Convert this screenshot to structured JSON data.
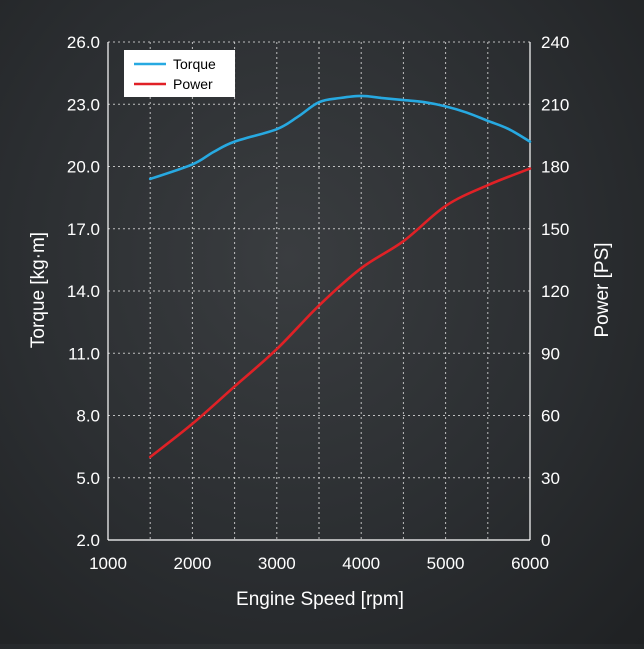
{
  "chart_data": {
    "type": "line",
    "title": "",
    "xlabel": "Engine Speed [rpm]",
    "ylabel_left": "Torque [kg·m]",
    "ylabel_right": "Power [PS]",
    "x_ticks": [
      1000,
      2000,
      3000,
      4000,
      5000,
      6000
    ],
    "x_minor_ticks": [
      1500,
      2500,
      3500,
      4500,
      5500
    ],
    "xlim": [
      1000,
      6000
    ],
    "y_left_ticks": [
      "2.0",
      "5.0",
      "8.0",
      "11.0",
      "14.0",
      "17.0",
      "20.0",
      "23.0",
      "26.0"
    ],
    "ylim_left": [
      2,
      26
    ],
    "y_right_ticks": [
      "0",
      "30",
      "60",
      "90",
      "120",
      "150",
      "180",
      "210",
      "240"
    ],
    "ylim_right": [
      0,
      240
    ],
    "grid": true,
    "legend": {
      "placement": "top-left",
      "entries": [
        "Torque",
        "Power"
      ]
    },
    "series": [
      {
        "name": "Torque",
        "axis": "left",
        "color": "#27a9e1",
        "x": [
          1500,
          2000,
          2250,
          2500,
          3000,
          3250,
          3500,
          3750,
          4000,
          4250,
          4500,
          4750,
          5000,
          5250,
          5500,
          5750,
          6000
        ],
        "values": [
          19.4,
          20.1,
          20.7,
          21.2,
          21.8,
          22.4,
          23.1,
          23.3,
          23.4,
          23.3,
          23.2,
          23.1,
          22.9,
          22.6,
          22.2,
          21.8,
          21.2
        ]
      },
      {
        "name": "Power",
        "axis": "right",
        "color": "#e02126",
        "x": [
          1500,
          2000,
          2500,
          3000,
          3500,
          4000,
          4500,
          5000,
          5500,
          6000
        ],
        "values": [
          40,
          56,
          74,
          92,
          113,
          131,
          144,
          161,
          171,
          179
        ]
      }
    ]
  }
}
